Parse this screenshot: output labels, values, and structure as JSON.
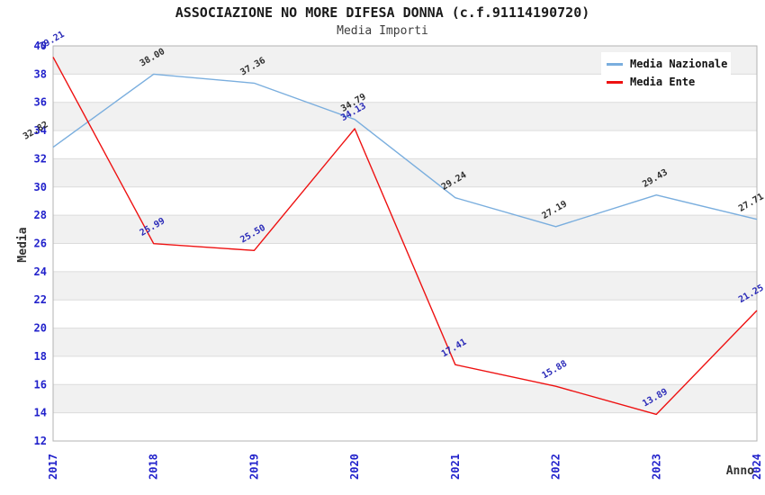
{
  "chart_data": {
    "type": "line",
    "title": "ASSOCIAZIONE NO MORE DIFESA DONNA (c.f.91114190720)",
    "subtitle": "Media Importi",
    "xlabel": "Anno",
    "ylabel": "Media",
    "x": [
      2017,
      2018,
      2019,
      2020,
      2021,
      2022,
      2023,
      2024
    ],
    "ylim": [
      12,
      40
    ],
    "ytick_step": 2,
    "yticks": [
      12,
      14,
      16,
      18,
      20,
      22,
      24,
      26,
      28,
      30,
      32,
      34,
      36,
      38,
      40
    ],
    "grid": "horizontal-bands-alternating",
    "legend_position": "top-right",
    "series": [
      {
        "name": "Media Nazionale",
        "color": "#7aaede",
        "label_color": "#303030",
        "values": [
          32.82,
          38.0,
          37.36,
          34.79,
          29.24,
          27.19,
          29.43,
          27.71
        ]
      },
      {
        "name": "Media Ente",
        "color": "#ee1111",
        "label_color": "#2a2ab8",
        "values": [
          39.21,
          25.99,
          25.5,
          34.13,
          17.41,
          15.88,
          13.89,
          21.25
        ]
      }
    ],
    "colors": {
      "tick_labels": "#2121cb",
      "band_gray": "#f1f1f1",
      "band_white": "#ffffff",
      "gridline": "#dcdcdc",
      "plot_border": "#b3b3b3",
      "legend_background": "#ffffff"
    }
  }
}
